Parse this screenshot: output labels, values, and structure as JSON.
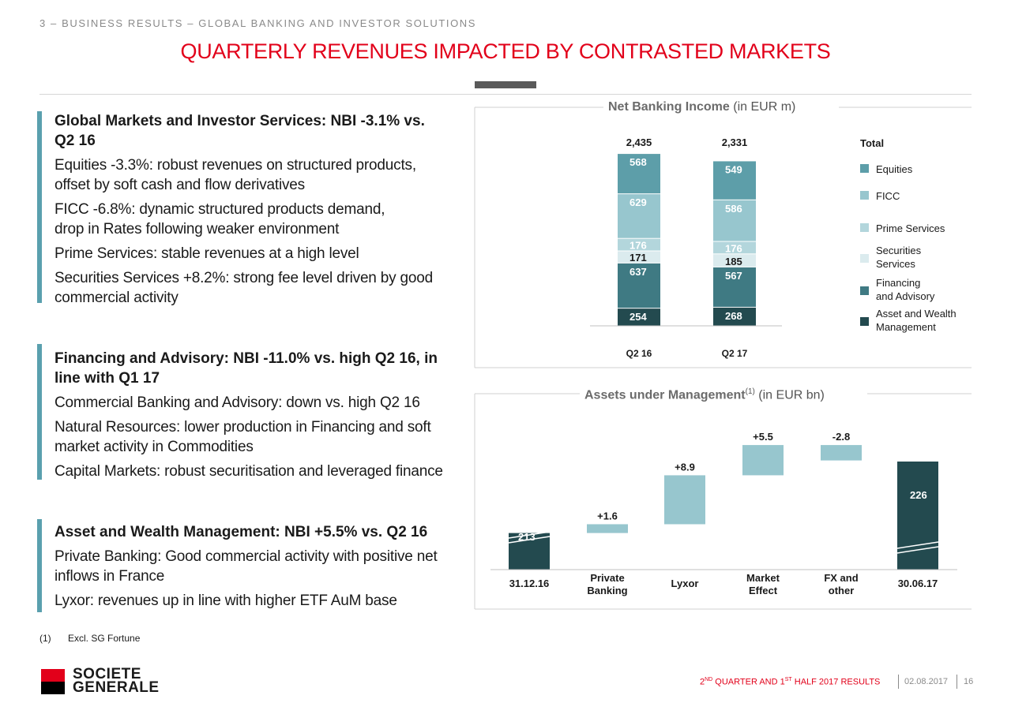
{
  "header": {
    "section_label": "3 – BUSINESS RESULTS – GLOBAL BANKING AND INVESTOR SOLUTIONS",
    "title": "QUARTERLY REVENUES IMPACTED BY CONTRASTED MARKETS"
  },
  "left": {
    "blocks": [
      {
        "heading": "Global Markets and Investor Services: NBI -3.1% vs. Q2 16",
        "paragraphs": [
          "Equities -3.3%: robust revenues on structured products, offset by soft cash and flow derivatives",
          "FICC -6.8%: dynamic structured products demand, drop in Rates following weaker environment",
          "Prime Services: stable revenues at a high level",
          "Securities Services +8.2%: strong fee level driven by good commercial activity"
        ]
      },
      {
        "heading": "Financing and Advisory:  NBI -11.0% vs. high Q2 16, in line with Q1 17",
        "paragraphs": [
          "Commercial Banking and Advisory: down vs. high Q2 16",
          "Natural Resources: lower production in Financing and soft market activity in Commodities",
          "Capital Markets: robust securitisation and leveraged finance"
        ]
      },
      {
        "heading": "Asset and Wealth Management: NBI +5.5% vs. Q2 16",
        "paragraphs": [
          "Private Banking: Good commercial activity with positive net inflows in France",
          "Lyxor: revenues up in line with higher ETF AuM base"
        ]
      }
    ]
  },
  "chart_data": [
    {
      "type": "bar",
      "stacked": true,
      "title": "Net Banking Income",
      "title_unit": "(in EUR m)",
      "categories": [
        "Q2 16",
        "Q2 17"
      ],
      "totals": [
        "2,435",
        "2,331"
      ],
      "total_label": "Total",
      "series": [
        {
          "name": "Asset and Wealth Management",
          "values": [
            254,
            268
          ],
          "color": "#234a4f",
          "label_color": "#ffffff"
        },
        {
          "name": "Financing and Advisory",
          "values": [
            637,
            567
          ],
          "color": "#3f7a83",
          "label_color": "#ffffff"
        },
        {
          "name": "Securities Services",
          "values": [
            171,
            185
          ],
          "color": "#dbebee",
          "label_color": "#1a1a1a"
        },
        {
          "name": "Prime Services",
          "values": [
            176,
            176
          ],
          "color": "#b3d6dc",
          "label_color": "#ffffff"
        },
        {
          "name": "FICC",
          "values": [
            629,
            586
          ],
          "color": "#97c6ce",
          "label_color": "#ffffff"
        },
        {
          "name": "Equities",
          "values": [
            568,
            549
          ],
          "color": "#5d9ea9",
          "label_color": "#ffffff"
        }
      ],
      "legend": [
        {
          "label": "Equities",
          "color": "#5d9ea9"
        },
        {
          "label": "FICC",
          "color": "#97c6ce"
        },
        {
          "label": "Prime Services",
          "color": "#b3d6dc"
        },
        {
          "label": "Securities Services",
          "color": "#dbebee"
        },
        {
          "label": "Financing and Advisory",
          "color": "#3f7a83"
        },
        {
          "label": "Asset and Wealth Management",
          "color": "#234a4f"
        }
      ]
    },
    {
      "type": "bar",
      "subtype": "waterfall",
      "title": "Assets under Management",
      "title_sup": "(1)",
      "title_unit": "(in EUR bn)",
      "categories": [
        "31.12.16",
        "Private Banking",
        "Lyxor",
        "Market Effect",
        "FX and other",
        "30.06.17"
      ],
      "values": [
        213,
        1.6,
        8.9,
        5.5,
        -2.8,
        226
      ],
      "labels": [
        "213",
        "+1.6",
        "+8.9",
        "+5.5",
        "-2.8",
        "226"
      ],
      "kinds": [
        "total",
        "delta",
        "delta",
        "delta",
        "delta",
        "total"
      ],
      "colors": {
        "total": "#234a4f",
        "delta": "#97c6ce"
      }
    }
  ],
  "footer": {
    "footnote_num": "(1)",
    "footnote_text": "Excl. SG Fortune",
    "logo_line1": "SOCIETE",
    "logo_line2": "GENERALE",
    "results_prefix": "2",
    "results_sup1": "ND",
    "results_mid": " QUARTER AND 1",
    "results_sup2": "ST",
    "results_suffix": " HALF 2017 RESULTS",
    "date": "02.08.2017",
    "page": "16"
  }
}
